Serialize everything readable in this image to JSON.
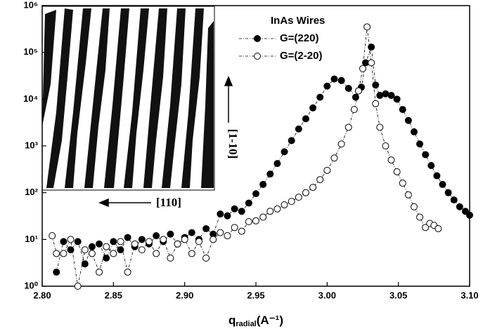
{
  "chart_data": {
    "type": "scatter",
    "xlabel": {
      "main": "q",
      "subscript": "radial",
      "unit": "(A⁻¹)"
    },
    "legend_title": "InAs Wires",
    "legend": "upper right",
    "yscale": "log",
    "xlim": [
      2.8,
      3.1
    ],
    "xticks": [
      {
        "value": 2.8,
        "label": "2.80"
      },
      2.85,
      {
        "value": 2.9,
        "label": "2.90"
      },
      2.95,
      {
        "value": 3.0,
        "label": "3.00"
      },
      3.05,
      {
        "value": 3.1,
        "label": "3.10"
      }
    ],
    "ylim": [
      1,
      1000000
    ],
    "yticks": [
      {
        "value": 1,
        "label": "10⁰"
      },
      {
        "value": 10,
        "label": "10¹"
      },
      {
        "value": 100,
        "label": "10²"
      },
      {
        "value": 1000,
        "label": "10³"
      },
      {
        "value": 10000,
        "label": "10⁴"
      },
      {
        "value": 100000,
        "label": "10⁵"
      },
      {
        "value": 1000000,
        "label": "10⁶"
      }
    ],
    "annotations": [
      "[1-10]",
      "[110]"
    ],
    "series": [
      {
        "name": "G=(220)",
        "color": "#000000",
        "marker": "filled",
        "x": [
          2.81,
          2.815,
          2.82,
          2.825,
          2.83,
          2.835,
          2.84,
          2.845,
          2.85,
          2.855,
          2.86,
          2.865,
          2.87,
          2.875,
          2.88,
          2.885,
          2.89,
          2.895,
          2.9,
          2.905,
          2.91,
          2.915,
          2.92,
          2.925,
          2.93,
          2.935,
          2.94,
          2.945,
          2.95,
          2.955,
          2.96,
          2.965,
          2.97,
          2.975,
          2.98,
          2.985,
          2.99,
          2.995,
          3.0,
          3.005,
          3.01,
          3.015,
          3.02,
          3.024,
          3.027,
          3.031,
          3.034,
          3.037,
          3.041,
          3.045,
          3.049,
          3.053,
          3.057,
          3.061,
          3.065,
          3.069,
          3.073,
          3.077,
          3.081,
          3.085,
          3.089,
          3.093,
          3.097,
          3.1
        ],
        "values": [
          2,
          9,
          6,
          9,
          3,
          7,
          8,
          4,
          9,
          6,
          11,
          7,
          10,
          8,
          12,
          9,
          13,
          8,
          11,
          14,
          10,
          17,
          13,
          35,
          32,
          45,
          40,
          60,
          95,
          150,
          250,
          420,
          750,
          1300,
          2300,
          3800,
          6500,
          11000,
          19000,
          27000,
          25000,
          17000,
          11000,
          18000,
          60000,
          130000,
          20000,
          12000,
          13000,
          12000,
          10000,
          6000,
          3500,
          2000,
          1100,
          650,
          380,
          230,
          150,
          100,
          70,
          50,
          40,
          33
        ]
      },
      {
        "name": "G=(2-20)",
        "color": "#000000",
        "marker": "open",
        "x": [
          2.807,
          2.81,
          2.815,
          2.82,
          2.825,
          2.83,
          2.835,
          2.84,
          2.845,
          2.85,
          2.855,
          2.86,
          2.865,
          2.87,
          2.875,
          2.88,
          2.885,
          2.89,
          2.895,
          2.9,
          2.905,
          2.91,
          2.915,
          2.92,
          2.925,
          2.93,
          2.935,
          2.94,
          2.945,
          2.95,
          2.955,
          2.96,
          2.965,
          2.97,
          2.975,
          2.98,
          2.985,
          2.99,
          2.995,
          3.0,
          3.005,
          3.01,
          3.015,
          3.019,
          3.022,
          3.025,
          3.028,
          3.031,
          3.034,
          3.037,
          3.041,
          3.045,
          3.049,
          3.053,
          3.057,
          3.061,
          3.065,
          3.069,
          3.072,
          3.075,
          3.078
        ],
        "values": [
          12,
          5,
          5,
          10,
          1,
          6,
          5,
          2,
          7,
          5,
          9,
          2,
          8,
          6,
          9,
          5,
          10,
          4,
          8,
          10,
          5,
          9,
          4,
          10,
          14,
          12,
          18,
          15,
          24,
          25,
          30,
          40,
          45,
          55,
          65,
          80,
          100,
          130,
          190,
          300,
          550,
          1100,
          2500,
          6000,
          15000,
          45000,
          350000,
          60000,
          8000,
          2500,
          1000,
          500,
          280,
          160,
          90,
          50,
          30,
          18,
          22,
          20,
          17
        ]
      }
    ]
  }
}
